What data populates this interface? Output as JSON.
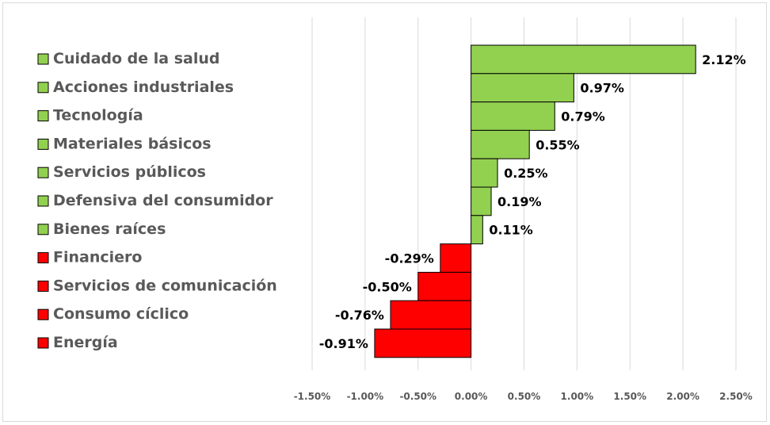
{
  "chart_data": {
    "type": "bar",
    "orientation": "horizontal",
    "categories": [
      "Cuidado de la salud",
      "Acciones industriales",
      "Tecnología",
      "Materiales básicos",
      "Servicios públicos",
      "Defensiva del consumidor",
      "Bienes raíces",
      "Financiero",
      "Servicios de comunicación",
      "Consumo cíclico",
      "Energía"
    ],
    "values": [
      2.12,
      0.97,
      0.79,
      0.55,
      0.25,
      0.19,
      0.11,
      -0.29,
      -0.5,
      -0.76,
      -0.91
    ],
    "data_labels": [
      "2.12%",
      "0.97%",
      "0.79%",
      "0.55%",
      "0.25%",
      "0.19%",
      "0.11%",
      "-0.29%",
      "-0.50%",
      "-0.76%",
      "-0.91%"
    ],
    "positive_color": "#92d050",
    "negative_color": "#ff0000",
    "xlim": [
      -1.5,
      2.5
    ],
    "x_ticks": [
      -1.5,
      -1.0,
      -0.5,
      0.0,
      0.5,
      1.0,
      1.5,
      2.0,
      2.5
    ],
    "x_tick_labels": [
      "-1.50%",
      "-1.00%",
      "-0.50%",
      "0.00%",
      "0.50%",
      "1.00%",
      "1.50%",
      "2.00%",
      "2.50%"
    ],
    "grid": "vertical",
    "legend": "left"
  }
}
